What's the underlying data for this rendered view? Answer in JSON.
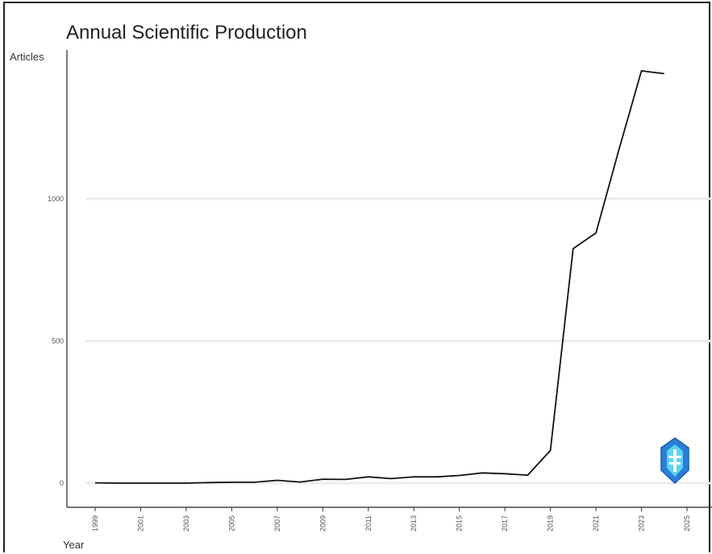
{
  "chart_data": {
    "type": "line",
    "title": "Annual Scientific Production",
    "ylabel": "Articles",
    "xlabel": "Year",
    "x": [
      1999,
      2000,
      2001,
      2002,
      2003,
      2004,
      2005,
      2006,
      2007,
      2008,
      2009,
      2010,
      2011,
      2012,
      2013,
      2014,
      2015,
      2016,
      2017,
      2018,
      2019,
      2020,
      2021,
      2022,
      2023,
      2024
    ],
    "series": [
      {
        "values": [
          1,
          0,
          0,
          0,
          0,
          2,
          3,
          3,
          10,
          4,
          14,
          13,
          22,
          16,
          22,
          22,
          27,
          36,
          33,
          28,
          115,
          825,
          880,
          1170,
          1450,
          1440
        ]
      }
    ],
    "xticks": [
      "1999",
      "2001",
      "2003",
      "2005",
      "2007",
      "2009",
      "2011",
      "2013",
      "2015",
      "2017",
      "2019",
      "2021",
      "2023",
      "2025"
    ],
    "yticks": [
      "0",
      "500",
      "1000"
    ],
    "xlim": [
      1999,
      2025
    ],
    "ylim": [
      0,
      1450
    ],
    "grid": true,
    "colors": {
      "line": "#111111",
      "grid": "#ececec"
    }
  },
  "logo": {
    "name": "shield-logo-icon",
    "color": "#2a7fd6"
  }
}
